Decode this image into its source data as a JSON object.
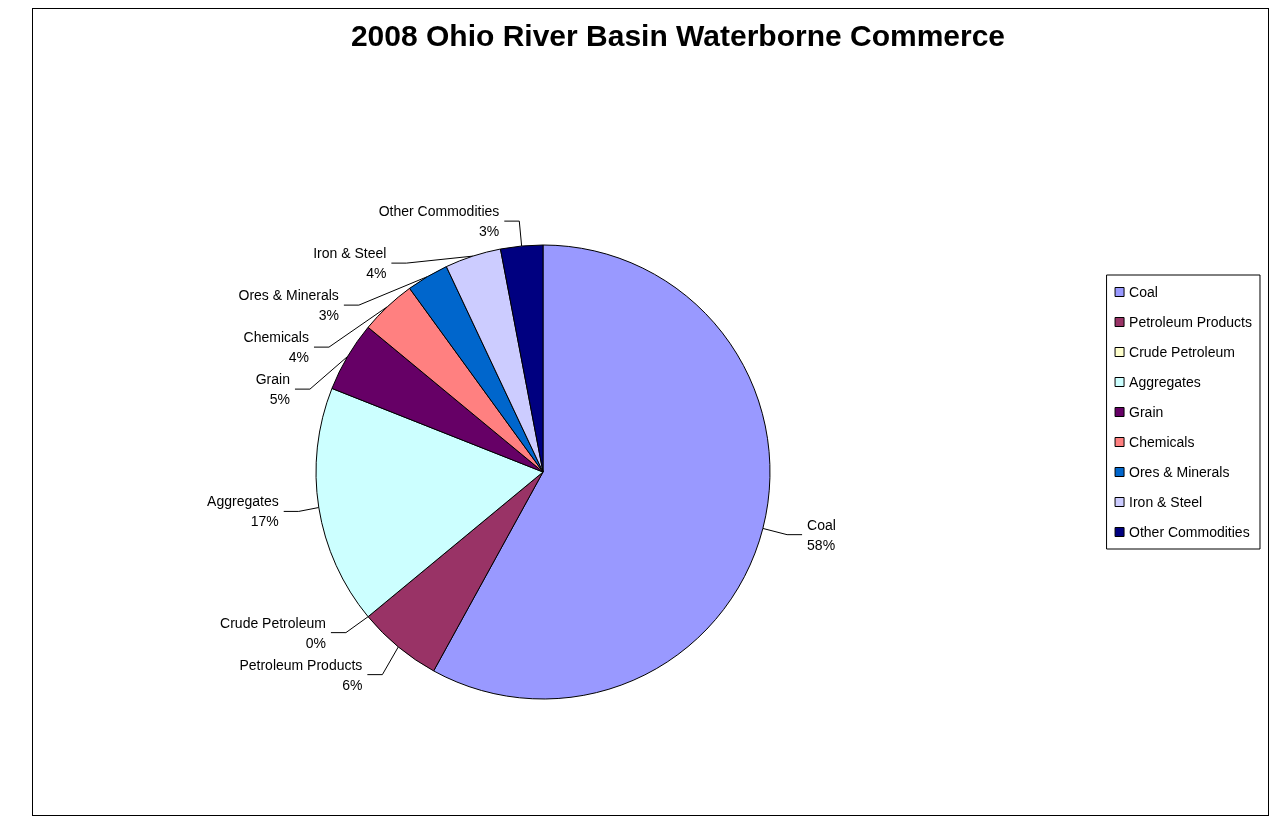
{
  "chart_data": {
    "type": "pie",
    "title": "2008 Ohio River Basin Waterborne Commerce",
    "categories": [
      "Coal",
      "Petroleum Products",
      "Crude Petroleum",
      "Aggregates",
      "Grain",
      "Chemicals",
      "Ores & Minerals",
      "Iron & Steel",
      "Other Commodities"
    ],
    "values": [
      58,
      6,
      0,
      17,
      5,
      4,
      3,
      4,
      3
    ],
    "value_labels": [
      "58%",
      "6%",
      "0%",
      "17%",
      "5%",
      "4%",
      "3%",
      "4%",
      "3%"
    ],
    "colors": [
      "#9999ff",
      "#993366",
      "#ffffcc",
      "#ccffff",
      "#660066",
      "#ff8080",
      "#0066cc",
      "#ccccff",
      "#000080"
    ],
    "legend": "right"
  }
}
